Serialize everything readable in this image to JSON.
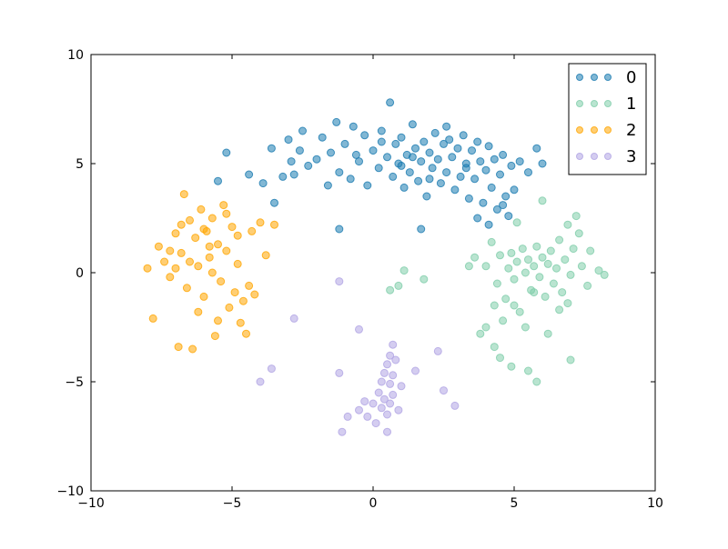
{
  "chart_data": {
    "type": "scatter",
    "title": "",
    "xlabel": "",
    "ylabel": "",
    "xlim": [
      -10,
      10
    ],
    "ylim": [
      -10,
      10
    ],
    "xticks": [
      -10,
      -5,
      0,
      5,
      10
    ],
    "yticks": [
      -10,
      -5,
      0,
      5,
      10
    ],
    "x_tick_labels": [
      "−10",
      "−5",
      "0",
      "5",
      "10"
    ],
    "y_tick_labels": [
      "−10",
      "−5",
      "0",
      "5",
      "10"
    ],
    "grid": false,
    "legend_position": "top-right",
    "series": [
      {
        "name": "0",
        "color": "#1a7bb0",
        "points": [
          [
            -5.5,
            4.2
          ],
          [
            -5.2,
            5.5
          ],
          [
            -4.4,
            4.5
          ],
          [
            -3.9,
            4.1
          ],
          [
            -3.6,
            5.7
          ],
          [
            -3.5,
            3.2
          ],
          [
            -3.2,
            4.4
          ],
          [
            -3.0,
            6.1
          ],
          [
            -2.8,
            4.5
          ],
          [
            -2.6,
            5.6
          ],
          [
            -2.5,
            6.5
          ],
          [
            -2.3,
            4.9
          ],
          [
            -2.0,
            5.2
          ],
          [
            -1.8,
            6.2
          ],
          [
            -1.6,
            4.0
          ],
          [
            -1.5,
            5.5
          ],
          [
            -1.3,
            6.9
          ],
          [
            -1.2,
            4.6
          ],
          [
            -1.0,
            5.9
          ],
          [
            -0.8,
            4.3
          ],
          [
            -0.7,
            6.7
          ],
          [
            -0.5,
            5.1
          ],
          [
            -0.3,
            6.3
          ],
          [
            -0.2,
            4.0
          ],
          [
            0.0,
            5.6
          ],
          [
            0.2,
            4.8
          ],
          [
            0.3,
            6.5
          ],
          [
            0.5,
            5.3
          ],
          [
            0.6,
            7.8
          ],
          [
            0.7,
            4.4
          ],
          [
            0.8,
            5.9
          ],
          [
            0.9,
            5.0
          ],
          [
            1.0,
            6.2
          ],
          [
            1.1,
            3.9
          ],
          [
            1.2,
            5.4
          ],
          [
            1.3,
            4.6
          ],
          [
            1.4,
            6.8
          ],
          [
            1.5,
            5.7
          ],
          [
            1.6,
            4.2
          ],
          [
            1.7,
            5.1
          ],
          [
            1.8,
            6.0
          ],
          [
            1.9,
            3.5
          ],
          [
            2.0,
            5.5
          ],
          [
            2.1,
            4.8
          ],
          [
            2.2,
            6.4
          ],
          [
            2.3,
            5.2
          ],
          [
            2.4,
            4.1
          ],
          [
            2.5,
            5.9
          ],
          [
            2.6,
            4.6
          ],
          [
            2.7,
            6.1
          ],
          [
            2.8,
            5.3
          ],
          [
            2.9,
            3.8
          ],
          [
            3.0,
            5.7
          ],
          [
            3.1,
            4.4
          ],
          [
            3.2,
            6.3
          ],
          [
            3.3,
            5.0
          ],
          [
            3.4,
            3.4
          ],
          [
            3.5,
            5.6
          ],
          [
            3.6,
            4.3
          ],
          [
            3.7,
            6.0
          ],
          [
            3.8,
            5.1
          ],
          [
            3.9,
            3.2
          ],
          [
            4.0,
            4.7
          ],
          [
            4.1,
            5.8
          ],
          [
            4.2,
            3.9
          ],
          [
            4.3,
            5.2
          ],
          [
            4.4,
            2.9
          ],
          [
            4.5,
            4.5
          ],
          [
            4.6,
            5.4
          ],
          [
            4.7,
            3.5
          ],
          [
            4.8,
            2.6
          ],
          [
            4.9,
            4.9
          ],
          [
            5.0,
            3.8
          ],
          [
            5.2,
            5.1
          ],
          [
            5.5,
            4.6
          ],
          [
            5.8,
            5.7
          ],
          [
            6.0,
            5.0
          ],
          [
            -1.2,
            2.0
          ],
          [
            1.7,
            2.0
          ],
          [
            4.1,
            2.2
          ],
          [
            3.7,
            2.5
          ],
          [
            0.3,
            6.0
          ],
          [
            -0.6,
            5.4
          ],
          [
            2.6,
            6.7
          ],
          [
            1.0,
            4.9
          ],
          [
            3.3,
            4.8
          ],
          [
            2.0,
            4.3
          ],
          [
            -2.9,
            5.1
          ],
          [
            4.6,
            3.1
          ],
          [
            1.4,
            5.3
          ]
        ]
      },
      {
        "name": "1",
        "color": "#7fcdaa",
        "points": [
          [
            3.6,
            0.7
          ],
          [
            4.0,
            0.3
          ],
          [
            4.2,
            1.4
          ],
          [
            4.4,
            -0.5
          ],
          [
            4.5,
            0.8
          ],
          [
            4.7,
            -1.2
          ],
          [
            4.8,
            0.2
          ],
          [
            4.9,
            0.9
          ],
          [
            5.0,
            -0.3
          ],
          [
            5.1,
            0.5
          ],
          [
            5.2,
            -1.8
          ],
          [
            5.3,
            1.1
          ],
          [
            5.4,
            0.0
          ],
          [
            5.5,
            0.6
          ],
          [
            5.6,
            -0.8
          ],
          [
            5.7,
            0.3
          ],
          [
            5.8,
            1.2
          ],
          [
            5.9,
            -0.2
          ],
          [
            6.0,
            0.7
          ],
          [
            6.1,
            -1.1
          ],
          [
            6.2,
            0.4
          ],
          [
            6.3,
            1.0
          ],
          [
            6.4,
            -0.5
          ],
          [
            6.5,
            0.2
          ],
          [
            6.6,
            1.5
          ],
          [
            6.7,
            -0.9
          ],
          [
            6.8,
            0.6
          ],
          [
            6.9,
            2.2
          ],
          [
            7.0,
            -0.1
          ],
          [
            7.1,
            1.1
          ],
          [
            7.2,
            2.6
          ],
          [
            7.4,
            0.3
          ],
          [
            7.6,
            -0.6
          ],
          [
            8.0,
            0.1
          ],
          [
            8.2,
            -0.1
          ],
          [
            7.0,
            -4.0
          ],
          [
            6.9,
            -1.4
          ],
          [
            6.2,
            -2.8
          ],
          [
            5.8,
            -5.0
          ],
          [
            5.5,
            -4.5
          ],
          [
            4.9,
            -4.3
          ],
          [
            4.5,
            -3.9
          ],
          [
            4.3,
            -3.4
          ],
          [
            4.0,
            -2.5
          ],
          [
            3.8,
            -2.8
          ],
          [
            4.6,
            -2.2
          ],
          [
            5.0,
            -1.5
          ],
          [
            5.4,
            -2.5
          ],
          [
            6.0,
            3.3
          ],
          [
            5.1,
            2.3
          ],
          [
            3.4,
            0.3
          ],
          [
            1.8,
            -0.3
          ],
          [
            1.1,
            0.1
          ],
          [
            0.9,
            -0.6
          ],
          [
            0.6,
            -0.8
          ],
          [
            6.6,
            -1.7
          ],
          [
            7.7,
            1.0
          ],
          [
            7.3,
            1.8
          ],
          [
            5.7,
            -0.9
          ],
          [
            4.3,
            -1.5
          ]
        ]
      },
      {
        "name": "2",
        "color": "#ffa500",
        "points": [
          [
            -8.0,
            0.2
          ],
          [
            -7.8,
            -2.1
          ],
          [
            -7.6,
            1.2
          ],
          [
            -7.4,
            0.5
          ],
          [
            -7.2,
            -0.2
          ],
          [
            -7.0,
            1.8
          ],
          [
            -6.9,
            -3.4
          ],
          [
            -6.8,
            0.9
          ],
          [
            -6.7,
            3.6
          ],
          [
            -6.6,
            -0.7
          ],
          [
            -6.5,
            2.4
          ],
          [
            -6.4,
            -3.5
          ],
          [
            -6.3,
            1.6
          ],
          [
            -6.2,
            0.3
          ],
          [
            -6.1,
            2.9
          ],
          [
            -6.0,
            -1.1
          ],
          [
            -5.9,
            1.9
          ],
          [
            -5.8,
            0.7
          ],
          [
            -5.7,
            2.5
          ],
          [
            -5.6,
            -2.9
          ],
          [
            -5.5,
            1.3
          ],
          [
            -5.4,
            -0.4
          ],
          [
            -5.3,
            3.1
          ],
          [
            -5.2,
            1.0
          ],
          [
            -5.1,
            -1.6
          ],
          [
            -5.0,
            2.1
          ],
          [
            -4.9,
            -0.9
          ],
          [
            -4.8,
            0.4
          ],
          [
            -4.7,
            -2.3
          ],
          [
            -4.6,
            -1.3
          ],
          [
            -4.5,
            -2.8
          ],
          [
            -4.4,
            -0.6
          ],
          [
            -4.2,
            -1.0
          ],
          [
            -4.0,
            2.3
          ],
          [
            -3.8,
            0.8
          ],
          [
            -3.5,
            2.2
          ],
          [
            -5.5,
            -2.2
          ],
          [
            -6.2,
            -1.8
          ],
          [
            -5.7,
            0.0
          ],
          [
            -6.5,
            0.5
          ],
          [
            -7.0,
            0.2
          ],
          [
            -5.2,
            2.7
          ],
          [
            -6.0,
            2.0
          ],
          [
            -5.8,
            1.2
          ],
          [
            -4.8,
            1.7
          ],
          [
            -4.3,
            1.9
          ],
          [
            -6.8,
            2.2
          ],
          [
            -7.2,
            1.0
          ]
        ]
      },
      {
        "name": "3",
        "color": "#b0a4e3",
        "points": [
          [
            -4.0,
            -5.0
          ],
          [
            -3.6,
            -4.4
          ],
          [
            -2.8,
            -2.1
          ],
          [
            -1.2,
            -0.4
          ],
          [
            -1.2,
            -4.6
          ],
          [
            -1.1,
            -7.3
          ],
          [
            -0.9,
            -6.6
          ],
          [
            -0.5,
            -2.6
          ],
          [
            -0.5,
            -6.3
          ],
          [
            -0.3,
            -5.9
          ],
          [
            -0.2,
            -6.6
          ],
          [
            0.0,
            -6.0
          ],
          [
            0.1,
            -6.9
          ],
          [
            0.2,
            -5.5
          ],
          [
            0.3,
            -6.2
          ],
          [
            0.3,
            -5.0
          ],
          [
            0.4,
            -4.6
          ],
          [
            0.4,
            -5.8
          ],
          [
            0.5,
            -4.2
          ],
          [
            0.5,
            -6.5
          ],
          [
            0.5,
            -7.3
          ],
          [
            0.6,
            -3.8
          ],
          [
            0.6,
            -5.1
          ],
          [
            0.6,
            -6.0
          ],
          [
            0.7,
            -3.3
          ],
          [
            0.7,
            -4.7
          ],
          [
            0.7,
            -5.6
          ],
          [
            0.8,
            -4.0
          ],
          [
            0.9,
            -6.3
          ],
          [
            1.0,
            -5.2
          ],
          [
            1.5,
            -4.5
          ],
          [
            2.3,
            -3.6
          ],
          [
            2.5,
            -5.4
          ],
          [
            2.9,
            -6.1
          ]
        ]
      }
    ]
  }
}
